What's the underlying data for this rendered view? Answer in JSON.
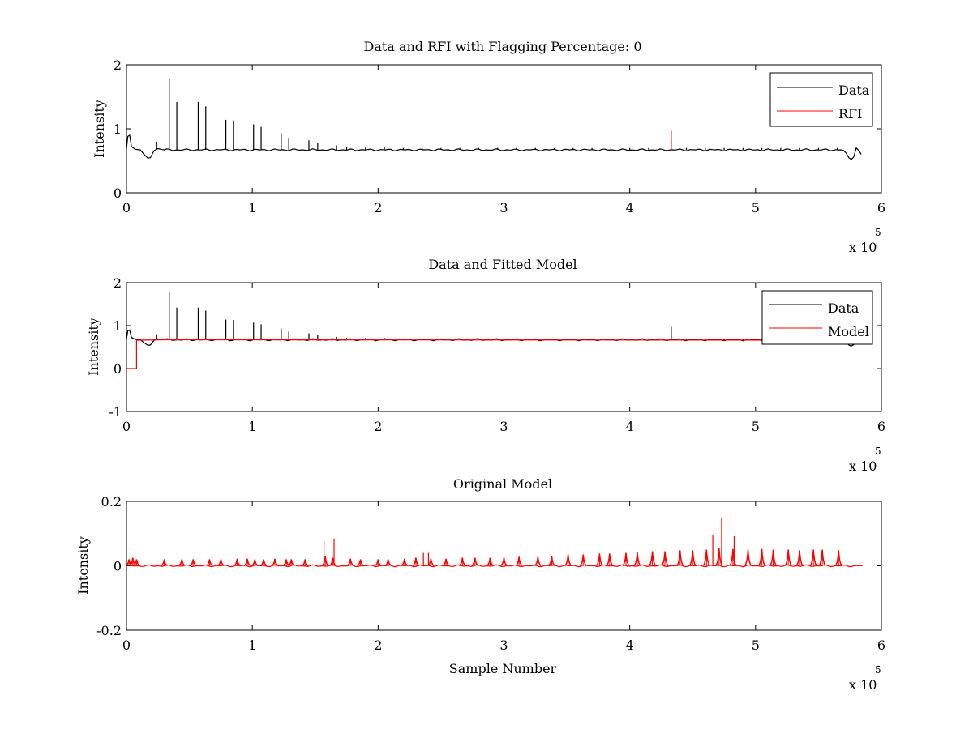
{
  "figure": {
    "background": "#ffffff",
    "colors": {
      "data": "#000000",
      "rfi": "#ff0000",
      "model": "#ff0000",
      "axes": "#000000"
    }
  },
  "chart_data": [
    {
      "type": "line",
      "title": "Data and RFI with Flagging Percentage: 0",
      "xlabel": "",
      "ylabel": "Intensity",
      "xlim": [
        0,
        600000
      ],
      "ylim": [
        0,
        2
      ],
      "xticks": [
        "0",
        "1",
        "2",
        "3",
        "4",
        "5",
        "6"
      ],
      "yticks": [
        "0",
        "1",
        "2"
      ],
      "x_multiplier": {
        "base": "x 10",
        "exponent": "5"
      },
      "grid": false,
      "legend": {
        "placement": "top-right",
        "entries": [
          "Data",
          "RFI"
        ]
      },
      "series": [
        {
          "name": "Data",
          "color": "#000000",
          "baseline": 0.67,
          "points": [
            [
              0,
              0.68
            ],
            [
              1000,
              0.88
            ],
            [
              2500,
              0.9
            ],
            [
              4000,
              0.72
            ],
            [
              7000,
              0.68
            ],
            [
              11000,
              0.67
            ],
            [
              14000,
              0.6
            ],
            [
              17000,
              0.54
            ],
            [
              19000,
              0.55
            ],
            [
              22000,
              0.66
            ],
            [
              25000,
              0.69
            ],
            [
              30000,
              0.67
            ],
            [
              570000,
              0.66
            ],
            [
              572000,
              0.62
            ],
            [
              574000,
              0.55
            ],
            [
              576000,
              0.52
            ],
            [
              578000,
              0.56
            ],
            [
              580000,
              0.7
            ],
            [
              582000,
              0.66
            ],
            [
              584000,
              0.6
            ]
          ],
          "spikes": [
            [
              24000,
              0.8
            ],
            [
              34000,
              1.78
            ],
            [
              40000,
              1.42
            ],
            [
              57000,
              1.42
            ],
            [
              63000,
              1.35
            ],
            [
              79000,
              1.14
            ],
            [
              85000,
              1.13
            ],
            [
              101000,
              1.07
            ],
            [
              107000,
              1.03
            ],
            [
              123000,
              0.93
            ],
            [
              129000,
              0.86
            ],
            [
              145000,
              0.82
            ],
            [
              152000,
              0.78
            ],
            [
              167000,
              0.74
            ],
            [
              175000,
              0.72
            ],
            [
              190000,
              0.71
            ],
            [
              205000,
              0.71
            ],
            [
              220000,
              0.7
            ],
            [
              235000,
              0.7
            ],
            [
              250000,
              0.7
            ],
            [
              265000,
              0.7
            ],
            [
              280000,
              0.7
            ],
            [
              295000,
              0.7
            ],
            [
              310000,
              0.7
            ],
            [
              325000,
              0.7
            ],
            [
              340000,
              0.7
            ],
            [
              355000,
              0.7
            ],
            [
              370000,
              0.7
            ],
            [
              385000,
              0.7
            ],
            [
              400000,
              0.7
            ],
            [
              415000,
              0.7
            ],
            [
              433000,
              0.82
            ],
            [
              445000,
              0.7
            ],
            [
              460000,
              0.7
            ],
            [
              475000,
              0.7
            ],
            [
              490000,
              0.7
            ],
            [
              505000,
              0.7
            ],
            [
              520000,
              0.7
            ],
            [
              535000,
              0.7
            ],
            [
              550000,
              0.7
            ],
            [
              565000,
              0.7
            ]
          ]
        },
        {
          "name": "RFI",
          "color": "#ff0000",
          "spikes": [
            [
              433000,
              0.97
            ]
          ]
        }
      ]
    },
    {
      "type": "line",
      "title": "Data and Fitted Model",
      "xlabel": "",
      "ylabel": "Intensity",
      "xlim": [
        0,
        600000
      ],
      "ylim": [
        -1,
        2
      ],
      "xticks": [
        "0",
        "1",
        "2",
        "3",
        "4",
        "5",
        "6"
      ],
      "yticks": [
        "-1",
        "0",
        "1",
        "2"
      ],
      "x_multiplier": {
        "base": "x 10",
        "exponent": "5"
      },
      "grid": false,
      "legend": {
        "placement": "top-right",
        "entries": [
          "Data",
          "Model"
        ]
      },
      "series": [
        {
          "name": "Data",
          "color": "#000000",
          "baseline": 0.67,
          "points": [
            [
              0,
              0.68
            ],
            [
              1000,
              0.88
            ],
            [
              2500,
              0.9
            ],
            [
              4000,
              0.72
            ],
            [
              7000,
              0.68
            ],
            [
              11000,
              0.67
            ],
            [
              14000,
              0.6
            ],
            [
              17000,
              0.54
            ],
            [
              19000,
              0.55
            ],
            [
              22000,
              0.66
            ],
            [
              25000,
              0.69
            ],
            [
              30000,
              0.67
            ],
            [
              570000,
              0.66
            ],
            [
              572000,
              0.62
            ],
            [
              574000,
              0.55
            ],
            [
              576000,
              0.52
            ],
            [
              578000,
              0.56
            ],
            [
              580000,
              0.7
            ],
            [
              582000,
              0.66
            ],
            [
              584000,
              0.6
            ]
          ],
          "spikes": [
            [
              24000,
              0.8
            ],
            [
              34000,
              1.78
            ],
            [
              40000,
              1.42
            ],
            [
              57000,
              1.42
            ],
            [
              63000,
              1.35
            ],
            [
              79000,
              1.14
            ],
            [
              85000,
              1.13
            ],
            [
              101000,
              1.07
            ],
            [
              107000,
              1.03
            ],
            [
              123000,
              0.93
            ],
            [
              129000,
              0.86
            ],
            [
              145000,
              0.82
            ],
            [
              152000,
              0.78
            ],
            [
              167000,
              0.74
            ],
            [
              175000,
              0.72
            ],
            [
              190000,
              0.71
            ],
            [
              205000,
              0.71
            ],
            [
              220000,
              0.7
            ],
            [
              235000,
              0.7
            ],
            [
              250000,
              0.7
            ],
            [
              265000,
              0.7
            ],
            [
              280000,
              0.7
            ],
            [
              295000,
              0.7
            ],
            [
              310000,
              0.7
            ],
            [
              325000,
              0.7
            ],
            [
              340000,
              0.7
            ],
            [
              355000,
              0.7
            ],
            [
              370000,
              0.7
            ],
            [
              385000,
              0.7
            ],
            [
              400000,
              0.7
            ],
            [
              415000,
              0.7
            ],
            [
              433000,
              0.97
            ],
            [
              445000,
              0.7
            ],
            [
              460000,
              0.7
            ],
            [
              475000,
              0.7
            ],
            [
              490000,
              0.7
            ],
            [
              505000,
              0.7
            ],
            [
              520000,
              0.7
            ],
            [
              535000,
              0.7
            ],
            [
              550000,
              0.7
            ],
            [
              565000,
              0.7
            ]
          ]
        },
        {
          "name": "Model",
          "color": "#ff0000",
          "points": [
            [
              0,
              0.0
            ],
            [
              8000,
              0.0
            ],
            [
              8000,
              0.66
            ],
            [
              30000,
              0.67
            ],
            [
              570000,
              0.66
            ],
            [
              584000,
              0.66
            ]
          ],
          "spikes": []
        }
      ]
    },
    {
      "type": "line",
      "title": "Original Model",
      "xlabel": "Sample Number",
      "ylabel": "Intensity",
      "xlim": [
        0,
        600000
      ],
      "ylim": [
        -0.2,
        0.2
      ],
      "xticks": [
        "0",
        "1",
        "2",
        "3",
        "4",
        "5",
        "6"
      ],
      "yticks": [
        "-0.2",
        "0",
        "0.2"
      ],
      "x_multiplier": {
        "base": "x 10",
        "exponent": "5"
      },
      "grid": false,
      "legend": null,
      "series": [
        {
          "color": "#ff0000",
          "baseline": 0.0,
          "points": [
            [
              0,
              0.0
            ],
            [
              585000,
              0.0
            ]
          ],
          "peaks": [
            [
              2000,
              0.02
            ],
            [
              5000,
              0.025
            ],
            [
              8000,
              0.02
            ],
            [
              30000,
              0.02
            ],
            [
              44000,
              0.02
            ],
            [
              53000,
              0.02
            ],
            [
              66000,
              0.02
            ],
            [
              75000,
              0.02
            ],
            [
              88000,
              0.022
            ],
            [
              96000,
              0.022
            ],
            [
              102000,
              0.02
            ],
            [
              109000,
              0.02
            ],
            [
              118000,
              0.022
            ],
            [
              127000,
              0.02
            ],
            [
              131000,
              0.02
            ],
            [
              142000,
              0.02
            ],
            [
              158000,
              0.03
            ],
            [
              164000,
              0.025
            ],
            [
              178000,
              0.022
            ],
            [
              186000,
              0.02
            ],
            [
              200000,
              0.02
            ],
            [
              208000,
              0.02
            ],
            [
              221000,
              0.022
            ],
            [
              230000,
              0.025
            ],
            [
              242000,
              0.022
            ],
            [
              254000,
              0.022
            ],
            [
              267000,
              0.025
            ],
            [
              277000,
              0.025
            ],
            [
              289000,
              0.025
            ],
            [
              300000,
              0.025
            ],
            [
              312000,
              0.028
            ],
            [
              327000,
              0.028
            ],
            [
              338000,
              0.03
            ],
            [
              351000,
              0.035
            ],
            [
              363000,
              0.035
            ],
            [
              376000,
              0.038
            ],
            [
              384000,
              0.038
            ],
            [
              397000,
              0.04
            ],
            [
              406000,
              0.042
            ],
            [
              418000,
              0.045
            ],
            [
              428000,
              0.045
            ],
            [
              440000,
              0.048
            ],
            [
              450000,
              0.048
            ],
            [
              461000,
              0.05
            ],
            [
              471000,
              0.055
            ],
            [
              482000,
              0.052
            ],
            [
              494000,
              0.05
            ],
            [
              505000,
              0.052
            ],
            [
              514000,
              0.05
            ],
            [
              526000,
              0.05
            ],
            [
              535000,
              0.048
            ],
            [
              546000,
              0.05
            ],
            [
              553000,
              0.05
            ],
            [
              566000,
              0.048
            ]
          ],
          "spikes": [
            [
              157000,
              0.075
            ],
            [
              165000,
              0.085
            ],
            [
              236000,
              0.04
            ],
            [
              240000,
              0.04
            ],
            [
              466000,
              0.095
            ],
            [
              473000,
              0.148
            ],
            [
              483000,
              0.092
            ]
          ]
        }
      ]
    }
  ]
}
